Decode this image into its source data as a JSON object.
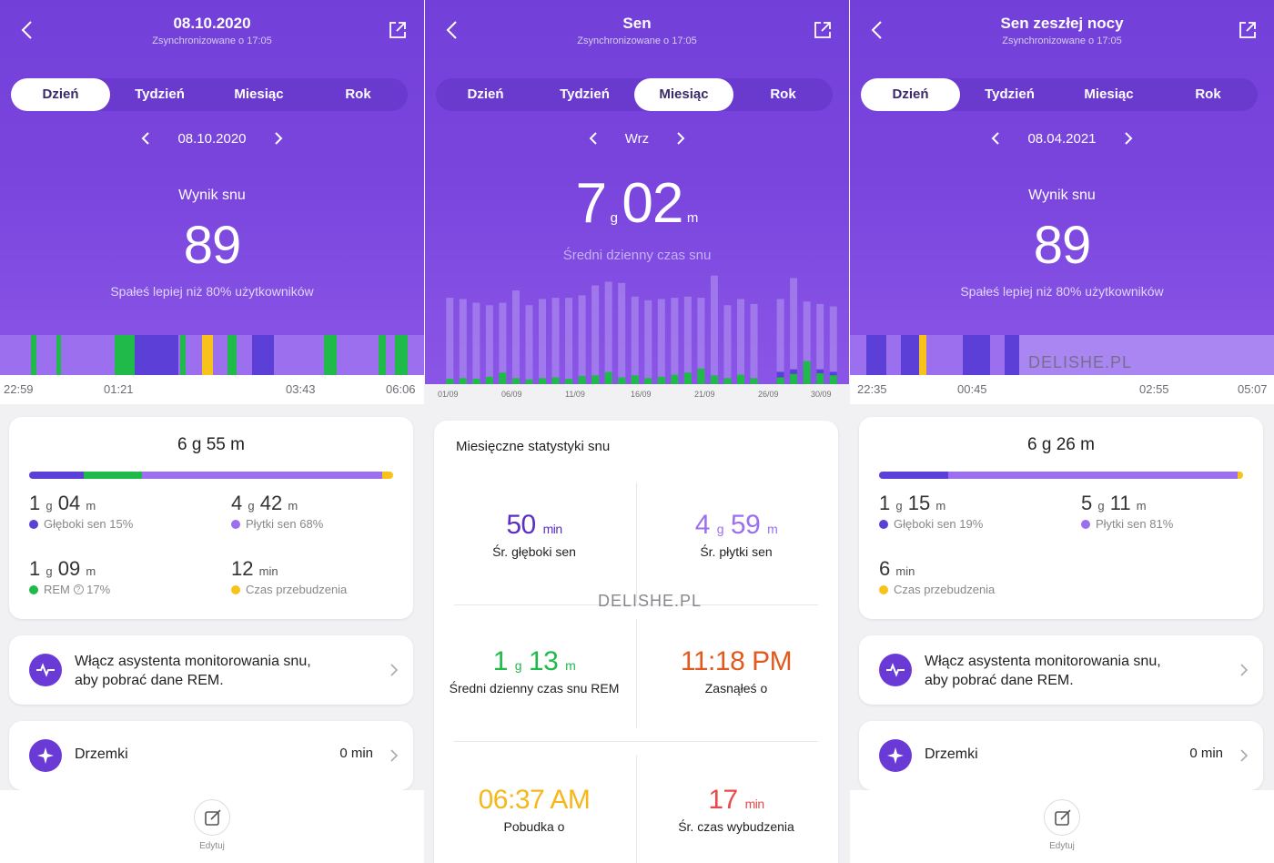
{
  "panel1": {
    "title": "08.10.2020",
    "sync": "Zsynchronizowane o 17:05",
    "tabs": [
      "Dzień",
      "Tydzień",
      "Miesiąc",
      "Rok"
    ],
    "date": "08.10.2020",
    "score_label": "Wynik snu",
    "score": "89",
    "compare": "Spałeś lepiej niż 80% użytkowników",
    "times": [
      "22:59",
      "01:21",
      "03:43",
      "06:06"
    ],
    "total": "6 g 55 m",
    "stats": {
      "deep": {
        "num1": "1",
        "u1": "g",
        "num2": "04",
        "u2": "m",
        "label": "Głęboki sen 15%"
      },
      "light": {
        "num1": "4",
        "u1": "g",
        "num2": "42",
        "u2": "m",
        "label": "Płytki sen 68%"
      },
      "rem": {
        "num1": "1",
        "u1": "g",
        "num2": "09",
        "u2": "m",
        "label": "REM",
        "pct": "17%"
      },
      "awake": {
        "num1": "12",
        "u1": "min",
        "label": "Czas przebudzenia"
      }
    },
    "assistant_text_1": "Włącz asystenta monitorowania snu,",
    "assistant_text_2": "aby pobrać dane REM.",
    "naps_label": "Drzemki",
    "naps_value": "0 min",
    "edit_label": "Edytuj"
  },
  "panel2": {
    "title": "Sen",
    "sync": "Zsynchronizowane o 17:05",
    "tabs": [
      "Dzień",
      "Tydzień",
      "Miesiąc",
      "Rok"
    ],
    "month": "Wrz",
    "avg_h": "7",
    "avg_h_unit": "g",
    "avg_m": "02",
    "avg_m_unit": "m",
    "avg_label": "Średni dzienny czas snu",
    "x_ticks": [
      "01/09",
      "06/09",
      "11/09",
      "16/09",
      "21/09",
      "26/09",
      "30/09"
    ],
    "card_title": "Miesięczne statystyki snu",
    "deep_val": "50",
    "deep_unit": "min",
    "deep_lbl": "Śr. głęboki sen",
    "light_h": "4",
    "light_hu": "g",
    "light_m": "59",
    "light_mu": "m",
    "light_lbl": "Śr. płytki sen",
    "rem_h": "1",
    "rem_hu": "g",
    "rem_m": "13",
    "rem_mu": "m",
    "rem_lbl": "Średni dzienny czas snu REM",
    "fell_asleep": "11:18 PM",
    "fell_asleep_lbl": "Zasnąłeś o",
    "wake": "06:37 AM",
    "wake_lbl": "Pobudka o",
    "awake_val": "17",
    "awake_unit": "min",
    "awake_lbl": "Śr. czas wybudzenia",
    "watermark": "DELISHE.PL"
  },
  "panel3": {
    "title": "Sen zeszłej nocy",
    "sync": "Zsynchronizowane o 17:05",
    "tabs": [
      "Dzień",
      "Tydzień",
      "Miesiąc",
      "Rok"
    ],
    "date": "08.04.2021",
    "score_label": "Wynik snu",
    "score": "89",
    "compare": "Spałeś lepiej niż 80% użytkowników",
    "times": [
      "22:35",
      "00:45",
      "02:55",
      "05:07"
    ],
    "watermark": "DELISHE.PL",
    "total": "6 g 26 m",
    "stats": {
      "deep": {
        "num1": "1",
        "u1": "g",
        "num2": "15",
        "u2": "m",
        "label": "Głęboki sen 19%"
      },
      "light": {
        "num1": "5",
        "u1": "g",
        "num2": "11",
        "u2": "m",
        "label": "Płytki sen 81%"
      },
      "awake": {
        "num1": "6",
        "u1": "min",
        "label": "Czas przebudzenia"
      }
    },
    "assistant_text_1": "Włącz asystenta monitorowania snu,",
    "assistant_text_2": "aby pobrać dane REM.",
    "naps_label": "Drzemki",
    "naps_value": "0 min",
    "edit_label": "Edytuj"
  },
  "colors": {
    "deep": "#5b3fd6",
    "light": "#9b6fee",
    "rem": "#1fba4a",
    "awake": "#f7c21a"
  },
  "chart_data": {
    "type": "bar",
    "title": "Średni dzienny czas snu",
    "categories": [
      "01/09",
      "02/09",
      "03/09",
      "04/09",
      "05/09",
      "06/09",
      "07/09",
      "08/09",
      "09/09",
      "10/09",
      "11/09",
      "12/09",
      "13/09",
      "14/09",
      "15/09",
      "16/09",
      "17/09",
      "18/09",
      "19/09",
      "20/09",
      "21/09",
      "22/09",
      "23/09",
      "24/09",
      "25/09",
      "26/09",
      "27/09",
      "28/09",
      "29/09",
      "30/09"
    ],
    "series": [
      {
        "name": "total_h",
        "values": [
          7.0,
          6.9,
          6.6,
          6.4,
          6.6,
          7.6,
          6.4,
          6.9,
          7.0,
          7.0,
          7.2,
          8.0,
          8.3,
          8.2,
          7.1,
          6.8,
          6.9,
          7.0,
          7.1,
          7.0,
          8.8,
          6.4,
          6.9,
          6.5,
          0,
          6.9,
          8.6,
          6.7,
          6.5,
          6.3
        ]
      },
      {
        "name": "rem_h",
        "values": [
          0.8,
          0.9,
          0.8,
          1.1,
          1.7,
          0.9,
          0.7,
          0.9,
          1.0,
          0.8,
          1.2,
          1.3,
          1.8,
          1.0,
          1.3,
          0.9,
          1.1,
          1.4,
          1.7,
          2.3,
          1.3,
          0.9,
          1.4,
          0.9,
          0,
          1.0,
          1.5,
          3.4,
          1.6,
          1.3
        ]
      },
      {
        "name": "deep_h",
        "values": [
          0,
          0,
          0,
          0,
          0,
          0,
          0,
          0,
          0,
          0,
          0,
          0,
          0,
          0,
          0,
          0,
          0,
          0,
          0,
          0,
          0,
          0,
          0,
          0,
          0,
          1.0,
          1.2,
          1.4,
          1.2,
          1.0
        ]
      }
    ],
    "ylim": [
      0,
      9
    ]
  }
}
